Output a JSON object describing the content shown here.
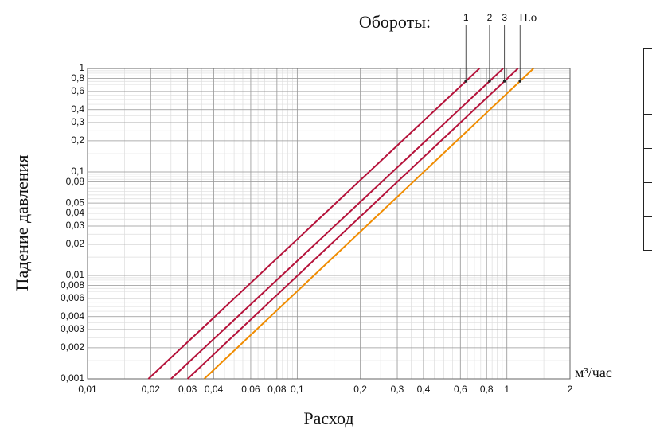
{
  "chart_data": {
    "type": "line",
    "title": "Обороты:",
    "x_label": "Расход",
    "y_label": "Падение давления",
    "x_unit": "м³/час",
    "xscale": "log",
    "yscale": "log",
    "grid": true,
    "xlim": [
      0.01,
      2
    ],
    "ylim": [
      0.001,
      1
    ],
    "xticks": [
      {
        "value": 0.01,
        "label": "0,01"
      },
      {
        "value": 0.02,
        "label": "0,02"
      },
      {
        "value": 0.03,
        "label": "0,03"
      },
      {
        "value": 0.04,
        "label": "0,04"
      },
      {
        "value": 0.06,
        "label": "0,06"
      },
      {
        "value": 0.08,
        "label": "0,08"
      },
      {
        "value": 0.1,
        "label": "0,1"
      },
      {
        "value": 0.2,
        "label": "0,2"
      },
      {
        "value": 0.3,
        "label": "0,3"
      },
      {
        "value": 0.4,
        "label": "0,4"
      },
      {
        "value": 0.6,
        "label": "0,6"
      },
      {
        "value": 0.8,
        "label": "0,8"
      },
      1,
      2
    ],
    "yticks": [
      {
        "value": 0.001,
        "label": "0,001"
      },
      {
        "value": 0.002,
        "label": "0,002"
      },
      {
        "value": 0.003,
        "label": "0,003"
      },
      {
        "value": 0.004,
        "label": "0,004"
      },
      {
        "value": 0.006,
        "label": "0,006"
      },
      {
        "value": 0.008,
        "label": "0,008"
      },
      {
        "value": 0.01,
        "label": "0,01"
      },
      {
        "value": 0.02,
        "label": "0,02"
      },
      {
        "value": 0.03,
        "label": "0,03"
      },
      {
        "value": 0.04,
        "label": "0,04"
      },
      {
        "value": 0.05,
        "label": "0,05"
      },
      {
        "value": 0.08,
        "label": "0,08"
      },
      {
        "value": 0.1,
        "label": "0,1"
      },
      {
        "value": 0.2,
        "label": "0,2"
      },
      {
        "value": 0.3,
        "label": "0,3"
      },
      {
        "value": 0.4,
        "label": "0,4"
      },
      {
        "value": 0.6,
        "label": "0,6"
      },
      {
        "value": 0.8,
        "label": "0,8"
      },
      1
    ],
    "series": [
      {
        "name": "1",
        "color": "#b5123a",
        "x": [
          0.0195,
          0.74
        ],
        "values": [
          0.001,
          1
        ]
      },
      {
        "name": "2",
        "color": "#b5123a",
        "x": [
          0.025,
          0.96
        ],
        "values": [
          0.001,
          1
        ]
      },
      {
        "name": "3",
        "color": "#b5123a",
        "x": [
          0.03,
          1.13
        ],
        "values": [
          0.001,
          1
        ]
      },
      {
        "name": "П.о",
        "color": "#f08c00",
        "x": [
          0.036,
          1.34
        ],
        "values": [
          0.001,
          1
        ]
      }
    ]
  }
}
